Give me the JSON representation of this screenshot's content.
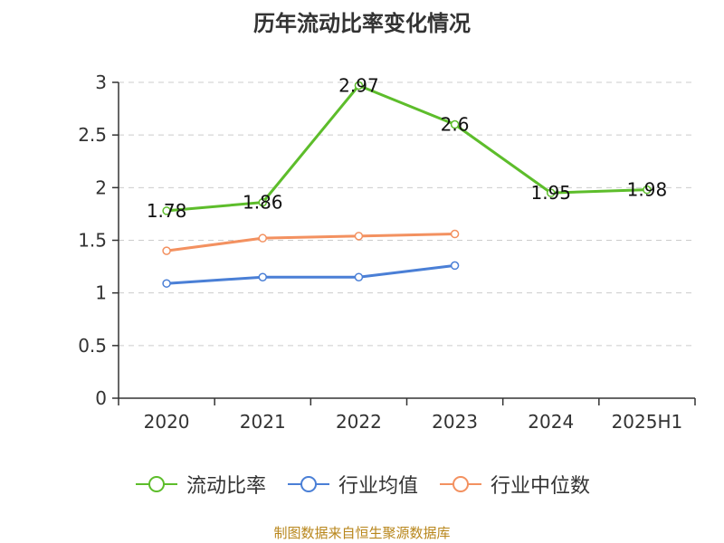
{
  "title": "历年流动比率变化情况",
  "source": "制图数据来自恒生聚源数据库",
  "colors": {
    "axis": "#333333",
    "grid": "#cccccc",
    "text": "#333333",
    "source": "#b8861b"
  },
  "chart_data": {
    "type": "line",
    "categories": [
      "2020",
      "2021",
      "2022",
      "2023",
      "2024",
      "2025H1"
    ],
    "ylim": [
      0,
      3
    ],
    "yticks": [
      0,
      0.5,
      1,
      1.5,
      2,
      2.5,
      3
    ],
    "ytick_labels": [
      "0",
      "0.5",
      "1",
      "1.5",
      "2",
      "2.5",
      "3"
    ],
    "grid": "horizontal-dashed",
    "legend_position": "bottom",
    "series": [
      {
        "name": "流动比率",
        "color": "#5dbd2b",
        "values": [
          1.78,
          1.86,
          2.97,
          2.6,
          1.95,
          1.98
        ],
        "labels": [
          "1.78",
          "1.86",
          "2.97",
          "2.6",
          "1.95",
          "1.98"
        ],
        "show_labels": true
      },
      {
        "name": "行业均值",
        "color": "#4a7fd6",
        "values": [
          1.09,
          1.15,
          1.15,
          1.26,
          null,
          null
        ],
        "show_labels": false
      },
      {
        "name": "行业中位数",
        "color": "#f39160",
        "values": [
          1.4,
          1.52,
          1.54,
          1.56,
          null,
          null
        ],
        "show_labels": false
      }
    ]
  }
}
